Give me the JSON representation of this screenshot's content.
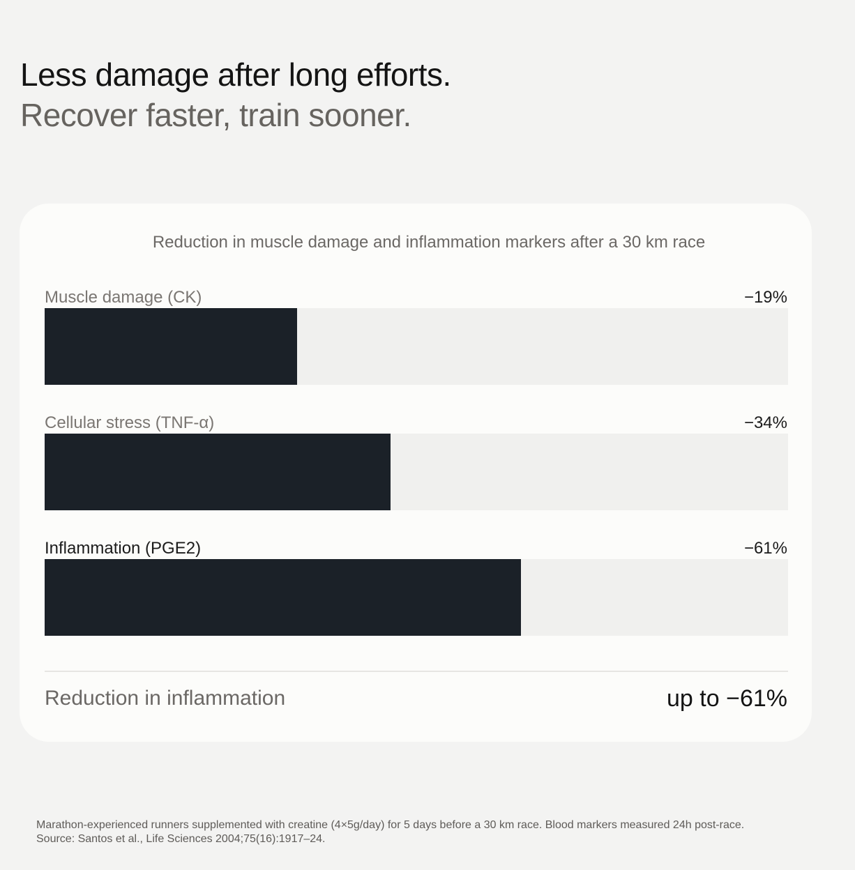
{
  "header": {
    "title": "Less damage after long efforts.",
    "subtitle": "Recover faster, train sooner."
  },
  "chart_data": {
    "type": "bar",
    "orientation": "horizontal",
    "title": "Reduction in muscle damage and inflammation markers after a 30 km race",
    "categories": [
      "Muscle damage (CK)",
      "Cellular stress (TNF-α)",
      "Inflammation (PGE2)"
    ],
    "values": [
      19,
      34,
      61
    ],
    "value_labels": [
      "−19%",
      "−34%",
      "−61%"
    ],
    "xlim": [
      0,
      100
    ],
    "grid": false,
    "bar_color": "#1b2128",
    "track_color": "#f0f0ee"
  },
  "summary": {
    "label": "Reduction in inflammation",
    "value": "up to −61%"
  },
  "footnote": {
    "line1": "Marathon-experienced runners supplemented with creatine (4×5g/day) for 5 days before a 30 km race. Blood markers measured 24h post-race.",
    "line2": "Source: Santos et al., Life Sciences 2004;75(16):1917–24."
  }
}
